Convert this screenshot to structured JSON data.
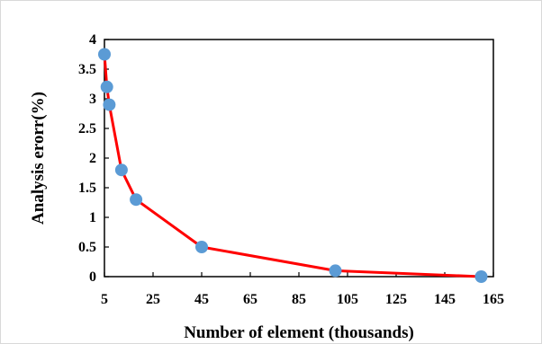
{
  "chart_data": {
    "type": "line",
    "title": "",
    "xlabel": "Number of element (thousands)",
    "ylabel": "Analysis erorr(%)",
    "xlim": [
      5,
      165
    ],
    "ylim": [
      0,
      4
    ],
    "x_ticks": [
      5,
      25,
      45,
      65,
      85,
      105,
      125,
      145,
      165
    ],
    "y_ticks": [
      0,
      0.5,
      1,
      1.5,
      2,
      2.5,
      3,
      3.5,
      4
    ],
    "grid": false,
    "legend": "none",
    "series": [
      {
        "line_color": "#ff0000",
        "marker_color": "#5b9bd5",
        "points": [
          {
            "x": 5,
            "y": 3.75
          },
          {
            "x": 6,
            "y": 3.2
          },
          {
            "x": 7,
            "y": 2.9
          },
          {
            "x": 12,
            "y": 1.8
          },
          {
            "x": 18,
            "y": 1.3
          },
          {
            "x": 45,
            "y": 0.5
          },
          {
            "x": 100,
            "y": 0.1
          },
          {
            "x": 160,
            "y": 0.0
          }
        ]
      }
    ]
  }
}
